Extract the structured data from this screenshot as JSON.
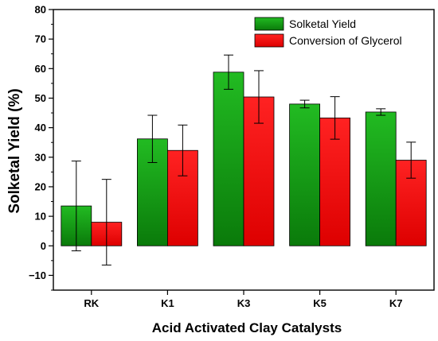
{
  "colors": {
    "series_0_top": "#22bb22",
    "series_0_bottom": "#0a7a0a",
    "series_1_top": "#ff2222",
    "series_1_bottom": "#dd0000"
  },
  "chart_data": {
    "type": "bar",
    "title": "",
    "xlabel": "Acid Activated Clay Catalysts",
    "ylabel": "Solketal Yield (%)",
    "ylim": [
      -15,
      80
    ],
    "yticks": [
      -10,
      0,
      10,
      20,
      30,
      40,
      50,
      60,
      70,
      80
    ],
    "grid": false,
    "legend_position": "top-right",
    "categories": [
      "RK",
      "K1",
      "K3",
      "K5",
      "K7"
    ],
    "series": [
      {
        "name": "Solketal Yield",
        "values": [
          13.5,
          36.2,
          58.8,
          48.0,
          45.3
        ],
        "error": [
          15.2,
          8.0,
          5.8,
          1.3,
          1.1
        ]
      },
      {
        "name": "Conversion of Glycerol",
        "values": [
          8.0,
          32.3,
          50.4,
          43.3,
          29.0
        ],
        "error": [
          14.5,
          8.6,
          8.9,
          7.2,
          6.1
        ]
      }
    ]
  }
}
